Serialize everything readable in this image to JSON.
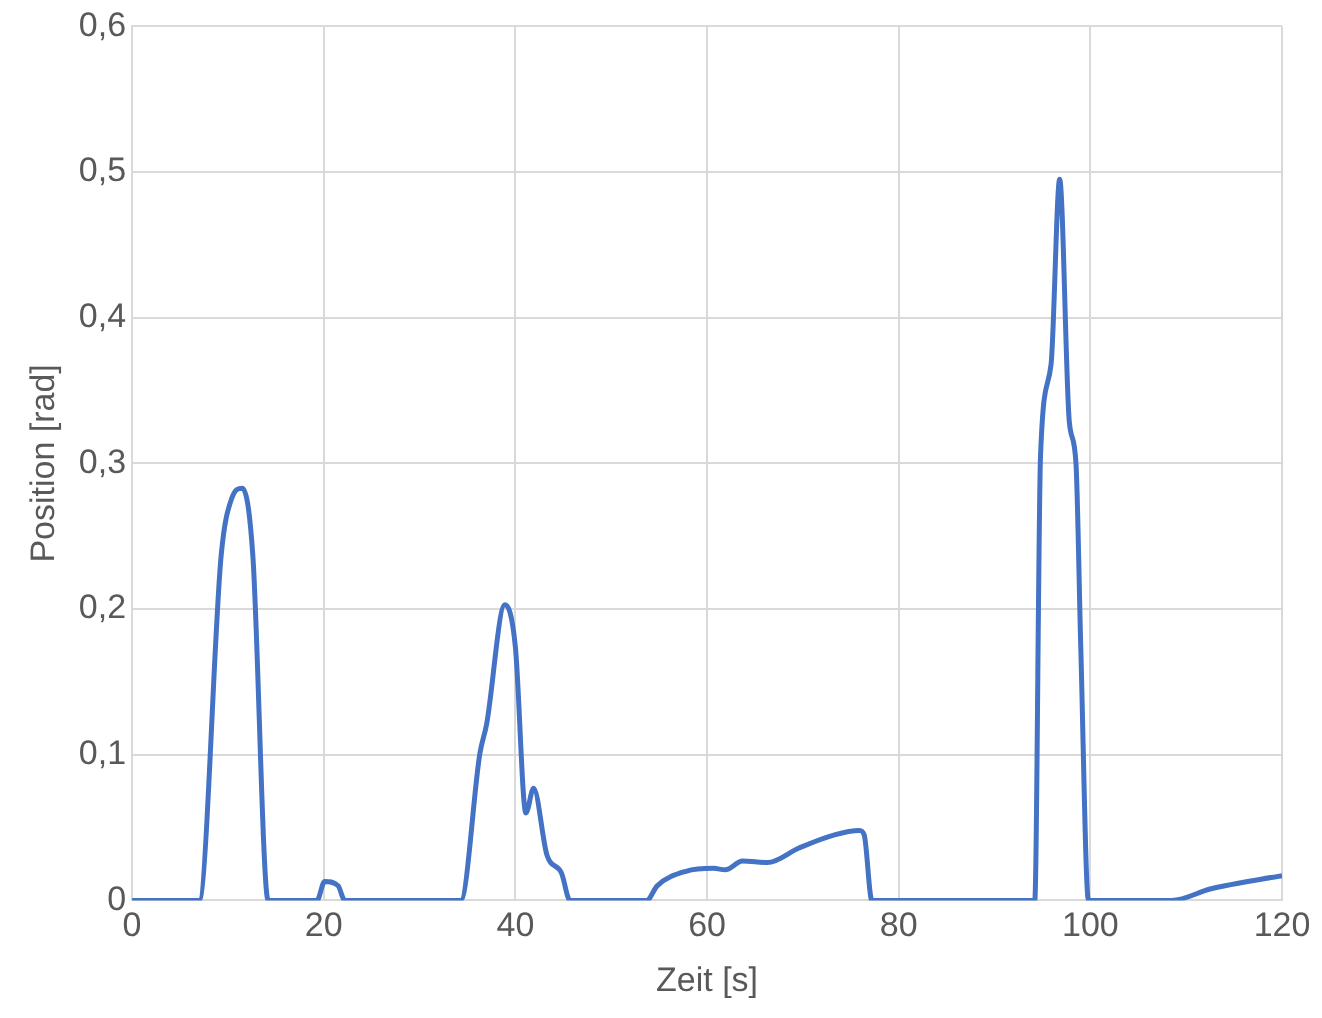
{
  "chart_data": {
    "type": "line",
    "xlabel": "Zeit [s]",
    "ylabel": "Position [rad]",
    "xlim": [
      0,
      120
    ],
    "xticks": [
      0,
      20,
      40,
      60,
      80,
      100,
      120
    ],
    "ylim": [
      0,
      0.6
    ],
    "yticks": [
      0,
      {
        "value": 0.1,
        "label": "0,1"
      },
      {
        "value": 0.2,
        "label": "0,2"
      },
      {
        "value": 0.3,
        "label": "0,3"
      },
      {
        "value": 0.4,
        "label": "0,4"
      },
      {
        "value": 0.5,
        "label": "0,5"
      },
      {
        "value": 0.6,
        "label": "0,6"
      }
    ],
    "grid": true,
    "legend": false,
    "marker": "none",
    "line_style": "solid",
    "series": [
      {
        "color": "#4472c4",
        "x": [
          0,
          7.0,
          9.3,
          10.4,
          11.5,
          12.6,
          14.2,
          19.3,
          20.1,
          21.5,
          22.2,
          34.3,
          36.3,
          37.0,
          38.9,
          40.0,
          41.1,
          41.9,
          43.3,
          44.8,
          45.7,
          53.7,
          54.8,
          57.8,
          60.7,
          61.9,
          63.7,
          66.3,
          69.6,
          73.3,
          75.9,
          76.4,
          77.2,
          94.2,
          94.8,
          95.9,
          96.8,
          97.8,
          98.5,
          99.0,
          99.8,
          108.5,
          112.6,
          120
        ],
        "values": [
          0,
          0,
          0.237,
          0.276,
          0.283,
          0.237,
          0,
          0,
          0.013,
          0.01,
          0,
          0,
          0.101,
          0.121,
          0.203,
          0.174,
          0.06,
          0.077,
          0.031,
          0.019,
          0,
          0,
          0.01,
          0.02,
          0.022,
          0.021,
          0.027,
          0.026,
          0.036,
          0.045,
          0.048,
          0.045,
          0,
          0,
          0.305,
          0.368,
          0.495,
          0.329,
          0.3,
          0.174,
          0,
          0,
          0.008,
          0.017
        ]
      }
    ]
  }
}
